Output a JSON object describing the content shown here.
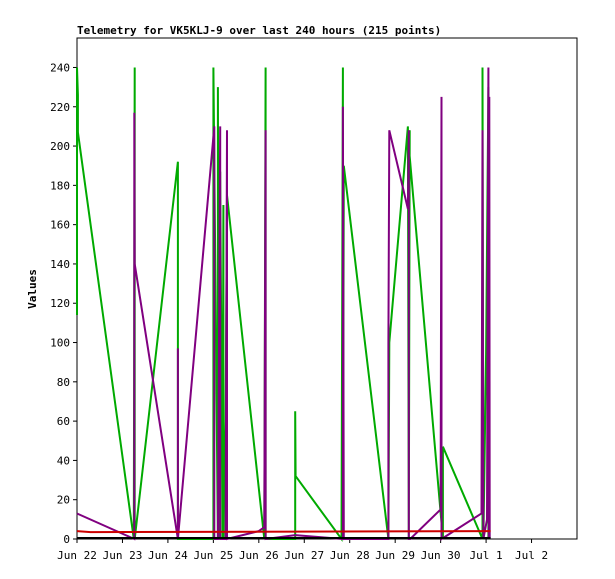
{
  "chart_data": {
    "type": "line",
    "title": "Telemetry for VK5KLJ-9 over last 240 hours (215 points)",
    "ylabel": "Values",
    "xlabel": "",
    "ylim": [
      0,
      255
    ],
    "xlim": [
      0,
      11
    ],
    "yticks": [
      0,
      20,
      40,
      60,
      80,
      100,
      120,
      140,
      160,
      180,
      200,
      220,
      240
    ],
    "xticks": [
      {
        "x": 0,
        "label": "Jun 22"
      },
      {
        "x": 1,
        "label": "Jun 23"
      },
      {
        "x": 2,
        "label": "Jun 24"
      },
      {
        "x": 3,
        "label": "Jun 25"
      },
      {
        "x": 4,
        "label": "Jun 26"
      },
      {
        "x": 5,
        "label": "Jun 27"
      },
      {
        "x": 6,
        "label": "Jun 28"
      },
      {
        "x": 7,
        "label": "Jun 29"
      },
      {
        "x": 8,
        "label": "Jun 30"
      },
      {
        "x": 9,
        "label": "Jul 1"
      },
      {
        "x": 10,
        "label": "Jul 2"
      }
    ],
    "grid": false,
    "series": [
      {
        "color": "#00aa00",
        "points": [
          [
            0.0,
            114
          ],
          [
            0.0,
            240
          ],
          [
            0.02,
            226
          ],
          [
            0.02,
            207
          ],
          [
            1.25,
            0
          ],
          [
            1.27,
            240
          ],
          [
            1.27,
            0
          ],
          [
            2.22,
            192
          ],
          [
            2.22,
            0
          ],
          [
            3.0,
            0
          ],
          [
            3.0,
            240
          ],
          [
            3.1,
            0
          ],
          [
            3.1,
            230
          ],
          [
            3.12,
            0
          ],
          [
            3.15,
            187
          ],
          [
            3.2,
            0
          ],
          [
            3.22,
            170
          ],
          [
            3.22,
            0
          ],
          [
            3.27,
            60
          ],
          [
            3.3,
            175
          ],
          [
            4.12,
            0
          ],
          [
            4.15,
            240
          ],
          [
            4.15,
            0
          ],
          [
            4.8,
            0
          ],
          [
            4.8,
            65
          ],
          [
            4.81,
            32
          ],
          [
            5.82,
            0
          ],
          [
            5.85,
            240
          ],
          [
            5.85,
            0
          ],
          [
            5.87,
            190
          ],
          [
            6.85,
            0
          ],
          [
            6.87,
            100
          ],
          [
            7.28,
            210
          ],
          [
            7.3,
            0
          ],
          [
            7.32,
            208
          ],
          [
            7.3,
            200
          ],
          [
            8.05,
            0
          ],
          [
            8.05,
            47
          ],
          [
            8.92,
            0
          ],
          [
            8.92,
            240
          ],
          [
            8.94,
            0
          ],
          [
            9.0,
            95
          ],
          [
            9.05,
            230
          ],
          [
            9.05,
            0
          ]
        ]
      },
      {
        "color": "#800080",
        "points": [
          [
            0.0,
            13
          ],
          [
            1.26,
            0
          ],
          [
            1.26,
            217
          ],
          [
            1.27,
            140
          ],
          [
            2.22,
            0
          ],
          [
            2.22,
            97
          ],
          [
            2.22,
            0
          ],
          [
            3.02,
            210
          ],
          [
            3.02,
            0
          ],
          [
            3.1,
            0
          ],
          [
            3.15,
            210
          ],
          [
            3.15,
            0
          ],
          [
            3.27,
            0
          ],
          [
            3.3,
            208
          ],
          [
            3.3,
            0
          ],
          [
            4.0,
            4
          ],
          [
            4.12,
            6
          ],
          [
            4.15,
            208
          ],
          [
            4.15,
            0
          ],
          [
            4.8,
            2
          ],
          [
            5.85,
            0
          ],
          [
            5.85,
            220
          ],
          [
            5.87,
            0
          ],
          [
            6.85,
            0
          ],
          [
            6.85,
            100
          ],
          [
            6.87,
            208
          ],
          [
            7.28,
            168
          ],
          [
            7.3,
            208
          ],
          [
            7.3,
            0
          ],
          [
            7.33,
            0
          ],
          [
            8.0,
            15
          ],
          [
            8.02,
            225
          ],
          [
            8.02,
            0
          ],
          [
            8.9,
            13
          ],
          [
            8.92,
            208
          ],
          [
            8.94,
            0
          ],
          [
            9.02,
            10
          ],
          [
            9.05,
            240
          ],
          [
            9.06,
            0
          ],
          [
            9.07,
            225
          ],
          [
            9.08,
            0
          ]
        ]
      },
      {
        "color": "#cc0000",
        "points": [
          [
            0.0,
            4
          ],
          [
            0.3,
            3.5
          ],
          [
            9.1,
            4
          ]
        ]
      },
      {
        "color": "#000000",
        "points": [
          [
            0.0,
            0.5
          ],
          [
            9.1,
            0.5
          ]
        ]
      }
    ]
  }
}
